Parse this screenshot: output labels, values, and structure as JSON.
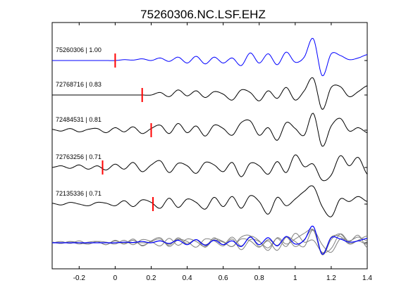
{
  "chart_data": {
    "type": "line",
    "title": "75260306.NC.LSF.EHZ",
    "xlabel": "",
    "ylabel": "",
    "xlim": [
      -0.35,
      1.4
    ],
    "x_ticks": [
      -0.2,
      0,
      0.2,
      0.4,
      0.6,
      0.8,
      1,
      1.2,
      1.4
    ],
    "x_tick_labels": [
      "-0.2",
      "0",
      "0.2",
      "0.4",
      "0.6",
      "0.8",
      "1",
      "1.2",
      "1.4"
    ],
    "grid": false,
    "trace_colors": {
      "reference": "#0000ff",
      "other": "#000000",
      "stack_other": "#808080",
      "pick": "#ff0000"
    },
    "series": [
      {
        "name": "75260306 | 1.00",
        "label": "75260306 | 1.00",
        "color": "#0000ff",
        "pick_time": 0.0,
        "x": [
          -0.35,
          -0.3,
          -0.25,
          -0.2,
          -0.15,
          -0.1,
          -0.05,
          0,
          0.05,
          0.1,
          0.15,
          0.2,
          0.25,
          0.3,
          0.35,
          0.4,
          0.45,
          0.5,
          0.55,
          0.6,
          0.65,
          0.7,
          0.75,
          0.8,
          0.85,
          0.9,
          0.95,
          1.0,
          1.05,
          1.1,
          1.15,
          1.2,
          1.25,
          1.3,
          1.35,
          1.4
        ],
        "y": [
          0,
          0,
          0,
          0,
          0,
          0,
          0,
          0,
          0.1,
          0.05,
          0.2,
          0,
          0.3,
          -0.1,
          0.4,
          -0.3,
          0.5,
          -0.4,
          0.4,
          -0.3,
          0.3,
          -0.6,
          0.9,
          -0.3,
          0.8,
          -0.5,
          1.0,
          -0.2,
          0.4,
          2.6,
          -1.8,
          0.8,
          0.6,
          0.1,
          0.3,
          0.7
        ]
      },
      {
        "name": "72768716 | 0.83",
        "label": "72768716 | 0.83",
        "color": "#000000",
        "pick_time": 0.15,
        "x": [
          -0.35,
          -0.3,
          -0.25,
          -0.2,
          -0.15,
          -0.1,
          -0.05,
          0,
          0.05,
          0.1,
          0.15,
          0.2,
          0.25,
          0.3,
          0.35,
          0.4,
          0.45,
          0.5,
          0.55,
          0.6,
          0.65,
          0.7,
          0.75,
          0.8,
          0.85,
          0.9,
          0.95,
          1.0,
          1.05,
          1.1,
          1.15,
          1.2,
          1.25,
          1.3,
          1.35,
          1.4
        ],
        "y": [
          0,
          0,
          0,
          0,
          0,
          0,
          0,
          0,
          0,
          0,
          0,
          0,
          0.3,
          -0.2,
          0.6,
          -0.1,
          0.5,
          -0.3,
          0.4,
          0.1,
          -0.6,
          0.6,
          0.3,
          -0.7,
          0.5,
          -0.4,
          0.9,
          -0.6,
          0.5,
          2.0,
          -1.7,
          0.9,
          1.0,
          -0.2,
          0.4,
          1.1
        ]
      },
      {
        "name": "72484531 | 0.81",
        "label": "72484531 | 0.81",
        "color": "#000000",
        "pick_time": 0.2,
        "x": [
          -0.35,
          -0.3,
          -0.25,
          -0.2,
          -0.15,
          -0.1,
          -0.05,
          0,
          0.05,
          0.1,
          0.15,
          0.2,
          0.25,
          0.3,
          0.35,
          0.4,
          0.45,
          0.5,
          0.55,
          0.6,
          0.65,
          0.7,
          0.75,
          0.8,
          0.85,
          0.9,
          0.95,
          1.0,
          1.05,
          1.1,
          1.15,
          1.2,
          1.25,
          1.3,
          1.35,
          1.4
        ],
        "y": [
          0.1,
          -0.1,
          0.2,
          -0.2,
          0.1,
          0.2,
          -0.3,
          0.3,
          -0.2,
          0.4,
          -0.4,
          0.2,
          0.6,
          -0.4,
          0.8,
          -0.3,
          0.5,
          -0.7,
          0.6,
          0.2,
          -0.6,
          0.9,
          1.1,
          -0.6,
          0.3,
          -1.2,
          0.9,
          0.2,
          -0.6,
          2.0,
          -1.9,
          0.5,
          1.4,
          -0.1,
          0.3,
          -0.3
        ]
      },
      {
        "name": "72763256 | 0.71",
        "label": "72763256 | 0.71",
        "color": "#000000",
        "pick_time": -0.07,
        "x": [
          -0.35,
          -0.3,
          -0.25,
          -0.2,
          -0.15,
          -0.1,
          -0.05,
          0,
          0.05,
          0.1,
          0.15,
          0.2,
          0.25,
          0.3,
          0.35,
          0.4,
          0.45,
          0.5,
          0.55,
          0.6,
          0.65,
          0.7,
          0.75,
          0.8,
          0.85,
          0.9,
          0.95,
          1.0,
          1.05,
          1.1,
          1.15,
          1.2,
          1.25,
          1.3,
          1.35,
          1.4
        ],
        "y": [
          0,
          0.2,
          -0.1,
          0.3,
          -0.2,
          0.2,
          -0.3,
          0.4,
          -0.2,
          0.6,
          -0.5,
          0.3,
          0.8,
          -0.6,
          0.5,
          0.2,
          -0.7,
          0.6,
          0.3,
          -0.5,
          0.6,
          -1.1,
          0.5,
          0.2,
          -0.8,
          0.7,
          -0.6,
          1.5,
          0.1,
          0.4,
          -1.5,
          -0.9,
          1.4,
          0.2,
          1.2,
          -0.8
        ]
      },
      {
        "name": "72135336 | 0.71",
        "label": "72135336 | 0.71",
        "color": "#000000",
        "pick_time": 0.21,
        "x": [
          -0.35,
          -0.3,
          -0.25,
          -0.2,
          -0.15,
          -0.1,
          -0.05,
          0,
          0.05,
          0.1,
          0.15,
          0.2,
          0.25,
          0.3,
          0.35,
          0.4,
          0.45,
          0.5,
          0.55,
          0.6,
          0.65,
          0.7,
          0.75,
          0.8,
          0.85,
          0.9,
          0.95,
          1.0,
          1.05,
          1.1,
          1.15,
          1.2,
          1.25,
          1.3,
          1.35,
          1.4
        ],
        "y": [
          0.1,
          -0.1,
          0.2,
          0,
          -0.2,
          0.2,
          0.1,
          -0.2,
          0.4,
          -0.3,
          0.5,
          0.2,
          -0.5,
          0.7,
          -0.4,
          0.6,
          0.2,
          -0.6,
          0.8,
          -0.3,
          0.9,
          -0.5,
          1.0,
          0.3,
          -1.2,
          0.8,
          -0.2,
          0.6,
          1.5,
          2.1,
          -0.3,
          -1.5,
          0.6,
          0.3,
          0.9,
          0.3
        ]
      }
    ],
    "stack": {
      "reference_series": 0,
      "note": "bottom panel overlays all traces; reference in blue, others in gray"
    }
  }
}
